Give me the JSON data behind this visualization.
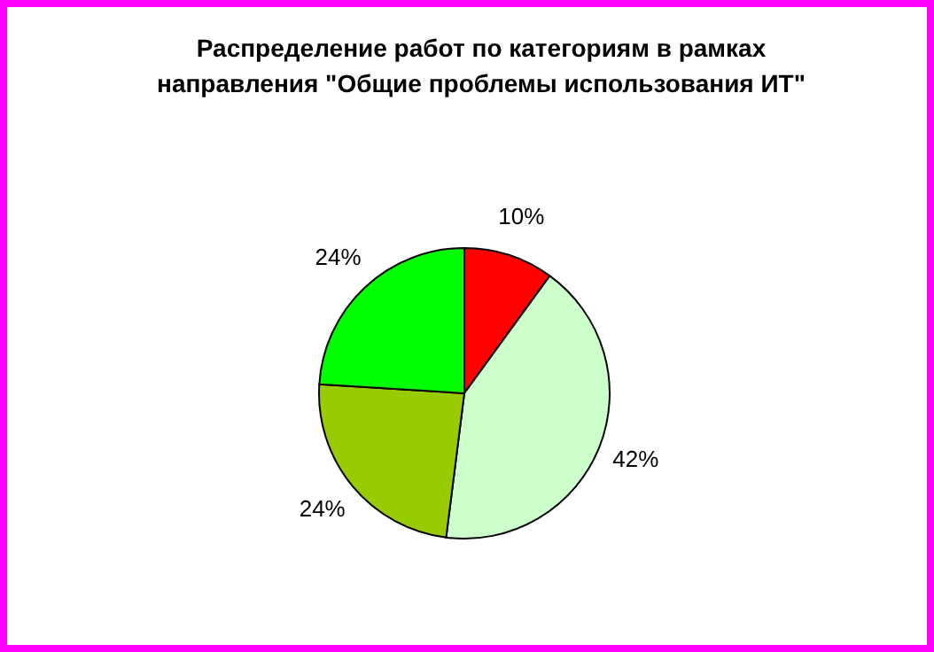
{
  "chart_data": {
    "type": "pie",
    "title": "Распределение работ по категориям в рамках\nнаправления \"Общие проблемы  использования ИТ\"",
    "categories": [
      null,
      null,
      null,
      null
    ],
    "values": [
      10,
      42,
      24,
      24
    ],
    "colors": [
      "#ff0000",
      "#ccffcc",
      "#99cc00",
      "#00ff00"
    ],
    "value_labels": [
      "10%",
      "42%",
      "24%",
      "24%"
    ]
  }
}
